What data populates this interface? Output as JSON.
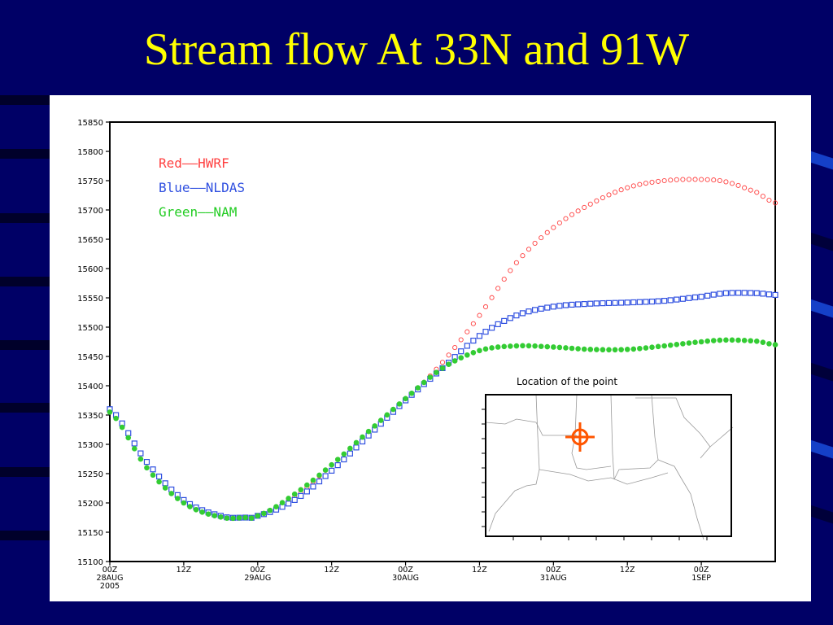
{
  "slide": {
    "title": "Stream flow At 33N and 91W",
    "background": "#000066",
    "title_color": "#ffff00"
  },
  "chart_data": {
    "type": "line",
    "y_ticks": [
      15100,
      15150,
      15200,
      15250,
      15300,
      15350,
      15400,
      15450,
      15500,
      15550,
      15600,
      15650,
      15700,
      15750,
      15800,
      15850
    ],
    "ylim": [
      15100,
      15850
    ],
    "xlim_hours": [
      0,
      108
    ],
    "x_ticks": [
      {
        "hour": 0,
        "lines": [
          "00Z",
          "28AUG",
          "2005"
        ]
      },
      {
        "hour": 12,
        "lines": [
          "12Z"
        ]
      },
      {
        "hour": 24,
        "lines": [
          "00Z",
          "29AUG"
        ]
      },
      {
        "hour": 36,
        "lines": [
          "12Z"
        ]
      },
      {
        "hour": 48,
        "lines": [
          "00Z",
          "30AUG"
        ]
      },
      {
        "hour": 60,
        "lines": [
          "12Z"
        ]
      },
      {
        "hour": 72,
        "lines": [
          "00Z",
          "31AUG"
        ]
      },
      {
        "hour": 84,
        "lines": [
          "12Z"
        ]
      },
      {
        "hour": 96,
        "lines": [
          "00Z",
          "1SEP"
        ]
      }
    ],
    "legend": [
      "Red——HWRF",
      "Blue——NLDAS",
      "Green——NAM"
    ],
    "legend_placement": "top-left",
    "series": [
      {
        "name": "HWRF",
        "color": "#ff4040",
        "marker": "circle",
        "x": [
          0,
          6,
          12,
          18,
          22,
          24,
          30,
          36,
          42,
          48,
          54,
          60,
          66,
          72,
          78,
          84,
          90,
          96,
          100,
          105,
          108
        ],
        "y": [
          15355,
          15270,
          15205,
          15178,
          15175,
          15178,
          15210,
          15265,
          15320,
          15375,
          15440,
          15520,
          15610,
          15670,
          15710,
          15738,
          15750,
          15752,
          15748,
          15730,
          15712
        ]
      },
      {
        "name": "NLDAS",
        "color": "#3050e0",
        "marker": "square",
        "x": [
          0,
          6,
          12,
          18,
          22,
          24,
          30,
          36,
          42,
          48,
          54,
          60,
          66,
          72,
          78,
          84,
          90,
          96,
          100,
          105,
          108
        ],
        "y": [
          15360,
          15270,
          15205,
          15178,
          15175,
          15178,
          15205,
          15255,
          15315,
          15375,
          15430,
          15485,
          15520,
          15535,
          15540,
          15542,
          15545,
          15552,
          15558,
          15558,
          15555
        ]
      },
      {
        "name": "NAM",
        "color": "#33cc33",
        "marker": "filled-circle",
        "x": [
          0,
          6,
          12,
          18,
          22,
          24,
          30,
          36,
          42,
          48,
          54,
          60,
          66,
          72,
          78,
          84,
          90,
          96,
          100,
          105,
          108
        ],
        "y": [
          15355,
          15260,
          15200,
          15176,
          15175,
          15178,
          15215,
          15265,
          15322,
          15378,
          15430,
          15460,
          15468,
          15466,
          15462,
          15462,
          15468,
          15475,
          15478,
          15476,
          15470
        ]
      }
    ],
    "inset": {
      "title": "Location of the point",
      "marker_color": "#ff5500"
    }
  }
}
